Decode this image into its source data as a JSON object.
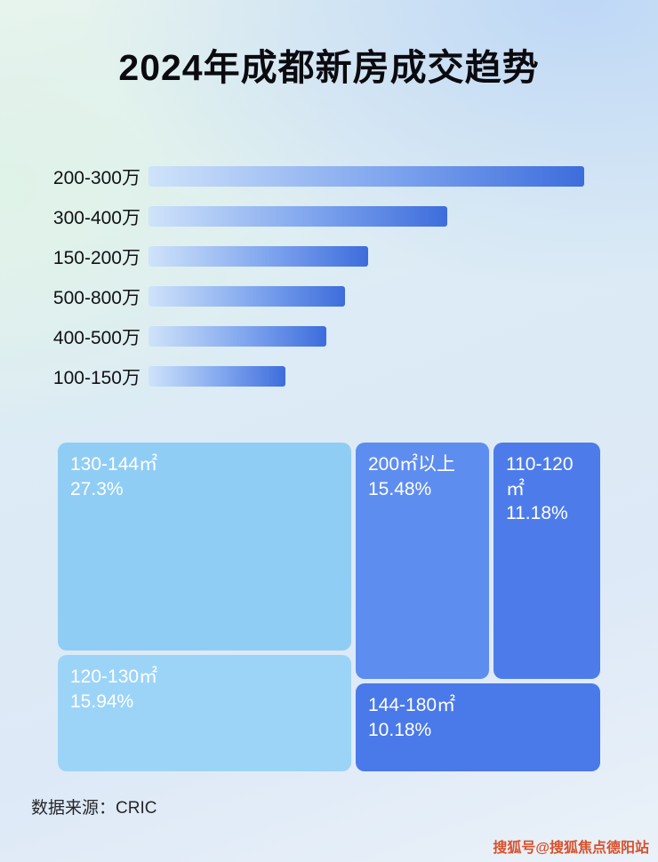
{
  "page": {
    "title": "2024年成都新房成交趋势",
    "source_label": "数据来源：CRIC",
    "watermark": "搜狐号@搜狐焦点德阳站"
  },
  "colors": {
    "bar_gradient_start": "#cfe3fa",
    "bar_gradient_end": "#3d6ddc",
    "watermark_color": "#d8512c"
  },
  "chart_data": [
    {
      "type": "bar",
      "title": "2024年成都新房成交趋势",
      "orientation": "horizontal",
      "categories": [
        "200-300万",
        "300-400万",
        "150-200万",
        "500-800万",
        "400-500万",
        "100-150万"
      ],
      "values": [
        100,
        68.5,
        50.4,
        45.2,
        40.9,
        31.5
      ],
      "value_unit": "relative bar length, % of longest bar (no numeric axis shown)",
      "xlabel": "",
      "ylabel": "",
      "grid": false,
      "legend": false
    },
    {
      "type": "treemap",
      "title": "",
      "items": [
        {
          "label": "130-144㎡",
          "value": "27.3%",
          "color": "#90cdf5"
        },
        {
          "label": "200㎡以上",
          "value": "15.48%",
          "color": "#5e8df0"
        },
        {
          "label": "110-120㎡",
          "value": "11.18%",
          "color": "#4d7cea"
        },
        {
          "label": "120-130㎡",
          "value": "15.94%",
          "color": "#9cd4f8"
        },
        {
          "label": "144-180㎡",
          "value": "10.18%",
          "color": "#4a79e9"
        }
      ]
    }
  ]
}
